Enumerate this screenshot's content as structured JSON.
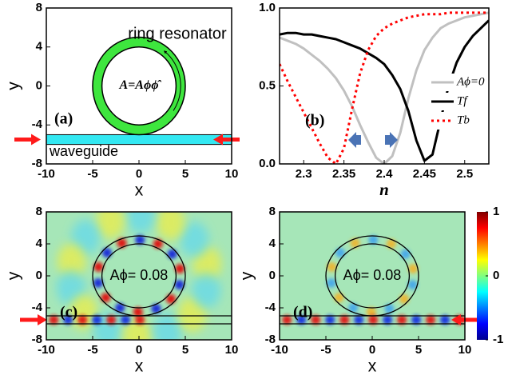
{
  "chart_data": [
    {
      "type": "schematic",
      "label": "(a)",
      "xlabel": "x",
      "ylabel": "y",
      "xlim": [
        -10,
        10
      ],
      "ylim": [
        -8,
        8
      ],
      "xticks": [
        -10,
        -5,
        0,
        5,
        10
      ],
      "yticks": [
        -8,
        -4,
        0,
        4,
        8
      ],
      "ring_radii": [
        4,
        5
      ],
      "waveguide_y": [
        -6,
        -5
      ],
      "ring_label": "ring resonator",
      "waveguide_label": "waveguide",
      "formula": "A=Aϕϕ̂"
    },
    {
      "type": "line",
      "label": "(b)",
      "xlabel": "n",
      "xlim": [
        2.27,
        2.53
      ],
      "ylim": [
        0,
        1
      ],
      "xticks": [
        2.3,
        2.35,
        2.4,
        2.45,
        2.5
      ],
      "yticks": [
        {
          "value": 0,
          "label": "0.0"
        },
        {
          "value": 0.5,
          "label": "0.5"
        },
        {
          "value": 1,
          "label": "1.0"
        }
      ],
      "legend": "right",
      "x": [
        2.27,
        2.28,
        2.29,
        2.3,
        2.31,
        2.32,
        2.33,
        2.34,
        2.35,
        2.36,
        2.37,
        2.38,
        2.39,
        2.4,
        2.41,
        2.42,
        2.43,
        2.44,
        2.45,
        2.46,
        2.47,
        2.48,
        2.49,
        2.5,
        2.51,
        2.52,
        2.53
      ],
      "series": [
        {
          "name": "Aϕ=0",
          "color": "#c0c0c0",
          "dash": "solid",
          "values": [
            0.81,
            0.79,
            0.77,
            0.74,
            0.7,
            0.66,
            0.61,
            0.55,
            0.47,
            0.37,
            0.25,
            0.14,
            0.04,
            0.0,
            0.05,
            0.2,
            0.42,
            0.6,
            0.73,
            0.81,
            0.87,
            0.9,
            0.92,
            0.94,
            0.95,
            0.96,
            0.97
          ]
        },
        {
          "name": "Tf",
          "color": "#000000",
          "dash": "solid",
          "values": [
            0.83,
            0.84,
            0.84,
            0.83,
            0.83,
            0.82,
            0.81,
            0.8,
            0.78,
            0.76,
            0.74,
            0.71,
            0.68,
            0.64,
            0.57,
            0.48,
            0.34,
            0.15,
            0.02,
            0.06,
            0.28,
            0.5,
            0.65,
            0.75,
            0.82,
            0.87,
            0.92
          ]
        },
        {
          "name": "Tb",
          "color": "#ff0000",
          "dash": "dotted",
          "values": [
            0.64,
            0.53,
            0.43,
            0.33,
            0.23,
            0.13,
            0.04,
            0.0,
            0.1,
            0.35,
            0.58,
            0.73,
            0.82,
            0.87,
            0.9,
            0.92,
            0.94,
            0.95,
            0.96,
            0.96,
            0.96,
            0.97,
            0.97,
            0.97,
            0.97,
            0.97,
            0.97
          ]
        }
      ]
    },
    {
      "type": "field",
      "label": "(c)",
      "xlabel": "x",
      "ylabel": "y",
      "xlim": [
        -10,
        10
      ],
      "ylim": [
        -8,
        8
      ],
      "xticks": [
        -10,
        -5,
        0,
        5,
        10
      ],
      "yticks": [
        -8,
        -4,
        0,
        4,
        8
      ],
      "ring_radii": [
        4,
        5
      ],
      "waveguide_y": [
        -6,
        -5
      ],
      "annotation": "Aϕ= 0.08"
    },
    {
      "type": "field",
      "label": "(d)",
      "xlabel": "x",
      "ylabel": "y",
      "xlim": [
        -10,
        10
      ],
      "ylim": [
        -8,
        8
      ],
      "xticks": [
        -10,
        -5,
        0,
        5,
        10
      ],
      "yticks": [
        -8,
        -4,
        0,
        4,
        8
      ],
      "ring_radii": [
        4,
        5
      ],
      "waveguide_y": [
        -6,
        -5
      ],
      "annotation": "Aϕ= 0.08",
      "colorbar": {
        "lim": [
          -1,
          1
        ],
        "ticks": [
          -1,
          0,
          1
        ]
      }
    }
  ]
}
